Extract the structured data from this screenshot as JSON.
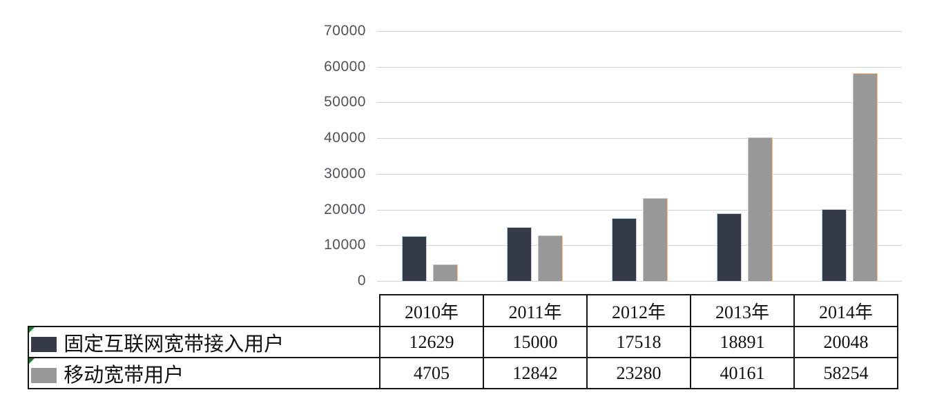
{
  "chart_data": {
    "type": "bar",
    "title": "",
    "xlabel": "",
    "ylabel": "",
    "categories": [
      "2010年",
      "2011年",
      "2012年",
      "2013年",
      "2014年"
    ],
    "series": [
      {
        "name": "固定互联网宽带接入用户",
        "color": "#343b46",
        "border_color": "#b9cfe2",
        "values": [
          12629,
          15000,
          17518,
          18891,
          20048
        ]
      },
      {
        "name": "移动宽带用户",
        "color": "#989898",
        "border_color": "#eec29a",
        "values": [
          4705,
          12842,
          23280,
          40161,
          58254
        ]
      }
    ],
    "ylim": [
      0,
      70000
    ],
    "ytick_step": 10000,
    "ytick_labels_top_down": [
      "70000",
      "60000",
      "50000",
      "40000",
      "30000",
      "20000",
      "10000",
      "0"
    ],
    "grid": true,
    "gridline_color": "#d2d2d2",
    "legend_position": "table-left-column"
  },
  "table": {
    "flag_color": "#1e7b34",
    "flag_meaning": "cell-corner-marker"
  }
}
